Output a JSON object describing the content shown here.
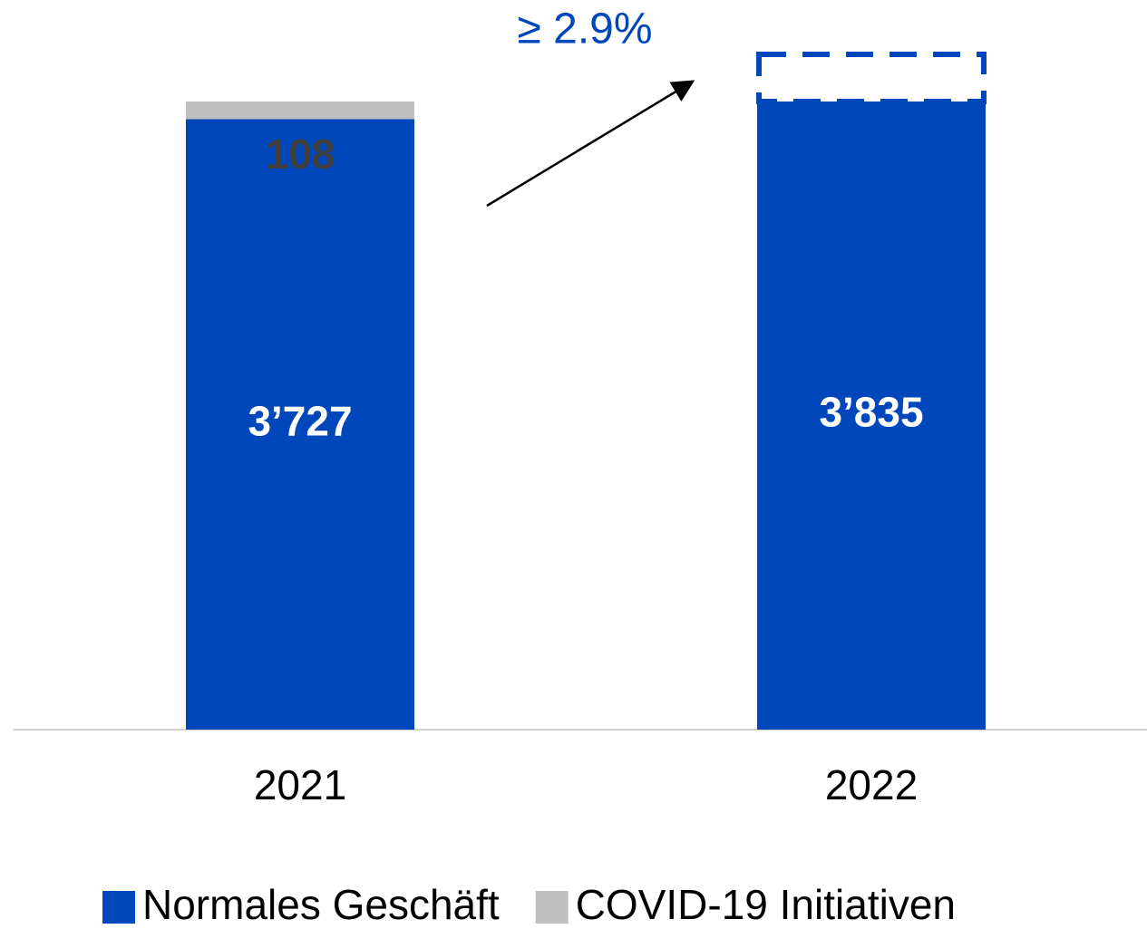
{
  "chart_data": {
    "type": "stacked_bar",
    "annotation": "≥ 2.9%",
    "categories": [
      "2021",
      "2022"
    ],
    "series": [
      {
        "name": "Normales Geschäft",
        "color": "#0047bb",
        "label_color": "#ffffff",
        "values": [
          3727,
          3835
        ],
        "value_labels": [
          "3’727",
          "3’835"
        ]
      },
      {
        "name": "COVID-19 Initiativen",
        "color": "#bfbfbf",
        "label_color": "#404040",
        "values": [
          108,
          null
        ],
        "value_labels": [
          "108",
          null
        ]
      }
    ],
    "annotation_color": "#0047bb"
  }
}
